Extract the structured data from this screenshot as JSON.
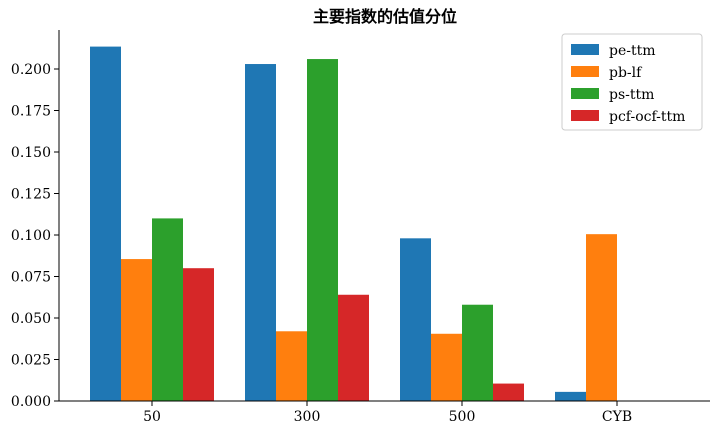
{
  "chart_data": {
    "type": "bar",
    "title": "主要指数的估值分位",
    "xlabel": "",
    "ylabel": "",
    "categories": [
      "50",
      "300",
      "500",
      "CYB"
    ],
    "series": [
      {
        "name": "pe-ttm",
        "color": "#1f77b4",
        "values": [
          0.2135,
          0.203,
          0.098,
          0.0055
        ]
      },
      {
        "name": "pb-lf",
        "color": "#ff7f0e",
        "values": [
          0.0855,
          0.042,
          0.0405,
          0.1005
        ]
      },
      {
        "name": "ps-ttm",
        "color": "#2ca02c",
        "values": [
          0.11,
          0.206,
          0.058,
          0.0
        ]
      },
      {
        "name": "pcf-ocf-ttm",
        "color": "#d62728",
        "values": [
          0.08,
          0.064,
          0.0105,
          0.0
        ]
      }
    ],
    "ylim": [
      0,
      0.2235
    ],
    "yticks": [
      "0.000",
      "0.025",
      "0.050",
      "0.075",
      "0.100",
      "0.125",
      "0.150",
      "0.175",
      "0.200"
    ],
    "grid": false,
    "legend_position": "top-right"
  }
}
